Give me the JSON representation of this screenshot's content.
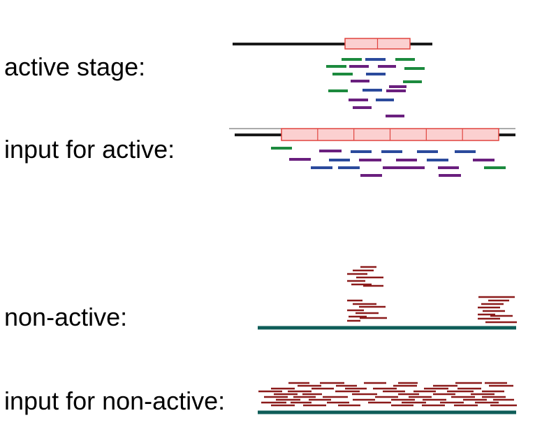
{
  "labels": {
    "active_stage": "active stage:",
    "input_for_active": "input for active:",
    "non_active": "non-active:",
    "input_for_non_active": "input for non-active:"
  },
  "colors": {
    "axis_line": "#1a1a1a",
    "teal_axis": "#0e5d58",
    "region_fill": "#fbd0d0",
    "region_stroke": "#e0443f",
    "green": "#1c8a3e",
    "blue": "#2b4a9c",
    "purple": "#6a1f7e",
    "dark_red": "#8b1a1a"
  },
  "icons": {
    "genomic_region": "segmented-region-box",
    "read": "short-read-bar"
  }
}
